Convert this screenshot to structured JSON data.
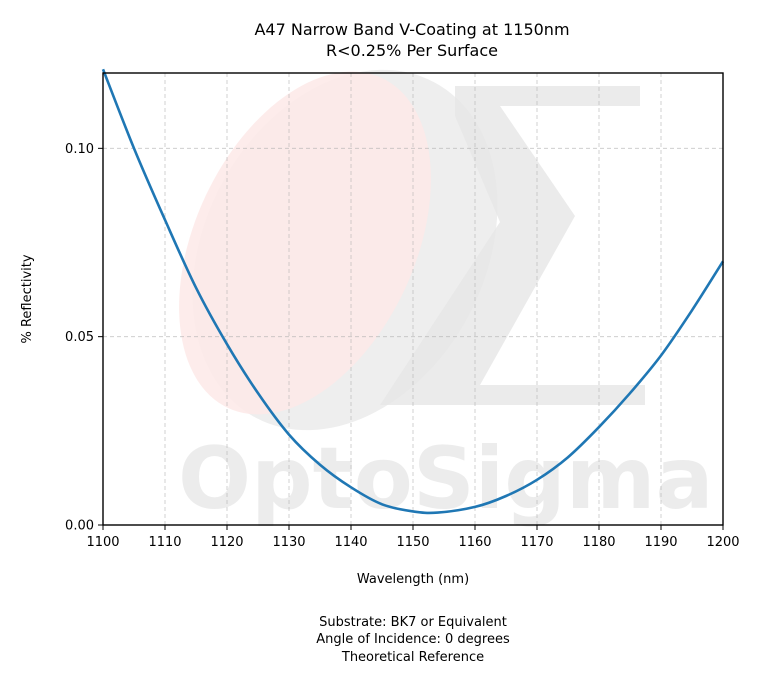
{
  "chart_data": {
    "type": "line",
    "title_lines": [
      "A47 Narrow Band V-Coating at 1150nm",
      "R<0.25% Per Surface"
    ],
    "xlabel": "Wavelength (nm)",
    "ylabel": "% Reflectivity",
    "xlim": [
      1100,
      1200
    ],
    "ylim": [
      0,
      0.12
    ],
    "xticks": [
      "1100",
      "1110",
      "1120",
      "1130",
      "1140",
      "1150",
      "1160",
      "1170",
      "1180",
      "1190",
      "1200"
    ],
    "yticks": [
      "0.00",
      "0.05",
      "0.10"
    ],
    "grid": true,
    "series": [
      {
        "color": "#1f77b4",
        "x": [
          1100,
          1105,
          1110,
          1115,
          1120,
          1125,
          1130,
          1135,
          1140,
          1145,
          1150,
          1154,
          1160,
          1165,
          1170,
          1175,
          1180,
          1185,
          1190,
          1195,
          1200
        ],
        "y": [
          0.121,
          0.1,
          0.081,
          0.063,
          0.048,
          0.035,
          0.024,
          0.016,
          0.01,
          0.0055,
          0.0036,
          0.0033,
          0.0048,
          0.0077,
          0.012,
          0.018,
          0.026,
          0.035,
          0.045,
          0.057,
          0.07
        ]
      }
    ]
  },
  "watermark": {
    "text": "OptoSigma",
    "symbol": "Σ"
  },
  "footnote_lines": [
    "Substrate: BK7 or Equivalent",
    "Angle of Incidence: 0 degrees",
    "Theoretical Reference"
  ]
}
